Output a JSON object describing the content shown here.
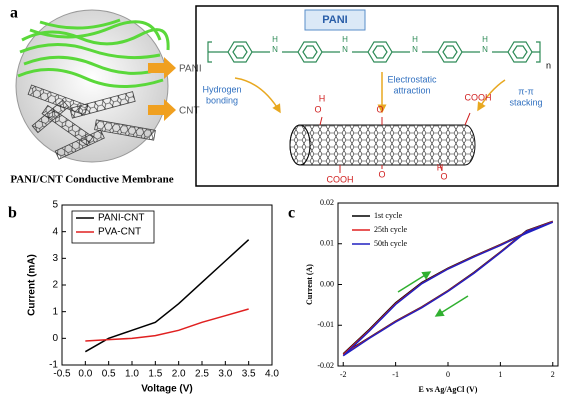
{
  "panel_a": {
    "label": "a",
    "membrane": {
      "pani_label": "PANI",
      "cnt_label": "CNT",
      "caption": "PANI/CNT Conductive Membrane"
    },
    "structure": {
      "title": "PANI",
      "repeat": "n",
      "amines": [
        {
          "h": "H",
          "n": "N"
        },
        {
          "h": "H",
          "n": "N"
        },
        {
          "h": "H",
          "n": "N"
        },
        {
          "h": "H",
          "n": "N"
        }
      ],
      "interactions": [
        [
          "Hydrogen",
          "bonding"
        ],
        [
          "Electrostatic",
          "attraction"
        ],
        [
          "π-π",
          "stacking"
        ]
      ],
      "groups": [
        "O",
        "H",
        "O",
        "COOH",
        "COOH",
        "O",
        "O",
        "H"
      ]
    }
  },
  "chart_data": [
    {
      "type": "line",
      "label": "b",
      "x": [
        0,
        0.5,
        1.0,
        1.5,
        2.0,
        2.5,
        3.0,
        3.5
      ],
      "series": [
        {
          "name": "PANI-CNT",
          "color": "#000000",
          "values": [
            -0.5,
            0.0,
            0.3,
            0.6,
            1.3,
            2.1,
            2.9,
            3.7
          ]
        },
        {
          "name": "PVA-CNT",
          "color": "#e02020",
          "values": [
            -0.1,
            -0.05,
            0.0,
            0.1,
            0.3,
            0.6,
            0.85,
            1.1
          ]
        }
      ],
      "xlabel": "Voltage (V)",
      "ylabel": "Current (mA)",
      "xlim": [
        -0.5,
        4.0
      ],
      "xticks": [
        {
          "value": -0.5,
          "label": "-0.5"
        },
        {
          "value": 0,
          "label": "0.0"
        },
        {
          "value": 0.5,
          "label": "0.5"
        },
        {
          "value": 1,
          "label": "1.0"
        },
        {
          "value": 1.5,
          "label": "1.5"
        },
        {
          "value": 2,
          "label": "2.0"
        },
        {
          "value": 2.5,
          "label": "2.5"
        },
        {
          "value": 3,
          "label": "3.0"
        },
        {
          "value": 3.5,
          "label": "3.5"
        },
        {
          "value": 4,
          "label": "4.0"
        }
      ],
      "ylim": [
        -1,
        5
      ],
      "yticks": [
        -1,
        0,
        1,
        2,
        3,
        4,
        5
      ],
      "legend": "upper left"
    },
    {
      "type": "line",
      "label": "c",
      "x": [
        -2,
        -1.5,
        -1,
        -0.5,
        0,
        0.5,
        1,
        1.5,
        2,
        1.5,
        1,
        0.5,
        0,
        -0.5,
        -1,
        -1.5,
        -2
      ],
      "series": [
        {
          "name": "1st cycle",
          "color": "#000000",
          "values": [
            -0.017,
            -0.011,
            -0.0045,
            0.0005,
            0.004,
            0.007,
            0.0098,
            0.0128,
            0.0155,
            0.0132,
            0.008,
            0.003,
            -0.0015,
            -0.0055,
            -0.009,
            -0.013,
            -0.017
          ]
        },
        {
          "name": "25th cycle",
          "color": "#e02020",
          "values": [
            -0.0172,
            -0.0112,
            -0.0047,
            0.0003,
            0.0039,
            0.0069,
            0.0097,
            0.0127,
            0.0154,
            0.0131,
            0.0079,
            0.0029,
            -0.0016,
            -0.0056,
            -0.0091,
            -0.0131,
            -0.0172
          ]
        },
        {
          "name": "50th cycle",
          "color": "#2020c0",
          "values": [
            -0.0175,
            -0.0114,
            -0.0049,
            0.0002,
            0.0038,
            0.0068,
            0.0096,
            0.0126,
            0.0153,
            0.013,
            0.0078,
            0.0028,
            -0.0017,
            -0.0057,
            -0.0092,
            -0.0132,
            -0.0175
          ]
        }
      ],
      "xlabel": "E vs Ag/AgCl (V)",
      "ylabel": "Current (A)",
      "xlim": [
        -2.1,
        2.1
      ],
      "xticks": [
        -2,
        -1,
        0,
        1,
        2
      ],
      "ylim": [
        -0.02,
        0.02
      ],
      "yticks": [
        {
          "value": -0.02,
          "label": "-0.02"
        },
        {
          "value": -0.01,
          "label": "-0.01"
        },
        {
          "value": 0,
          "label": "0.00"
        },
        {
          "value": 0.01,
          "label": "0.01"
        },
        {
          "value": 0.02,
          "label": "0.02"
        }
      ],
      "legend": "upper left"
    }
  ]
}
